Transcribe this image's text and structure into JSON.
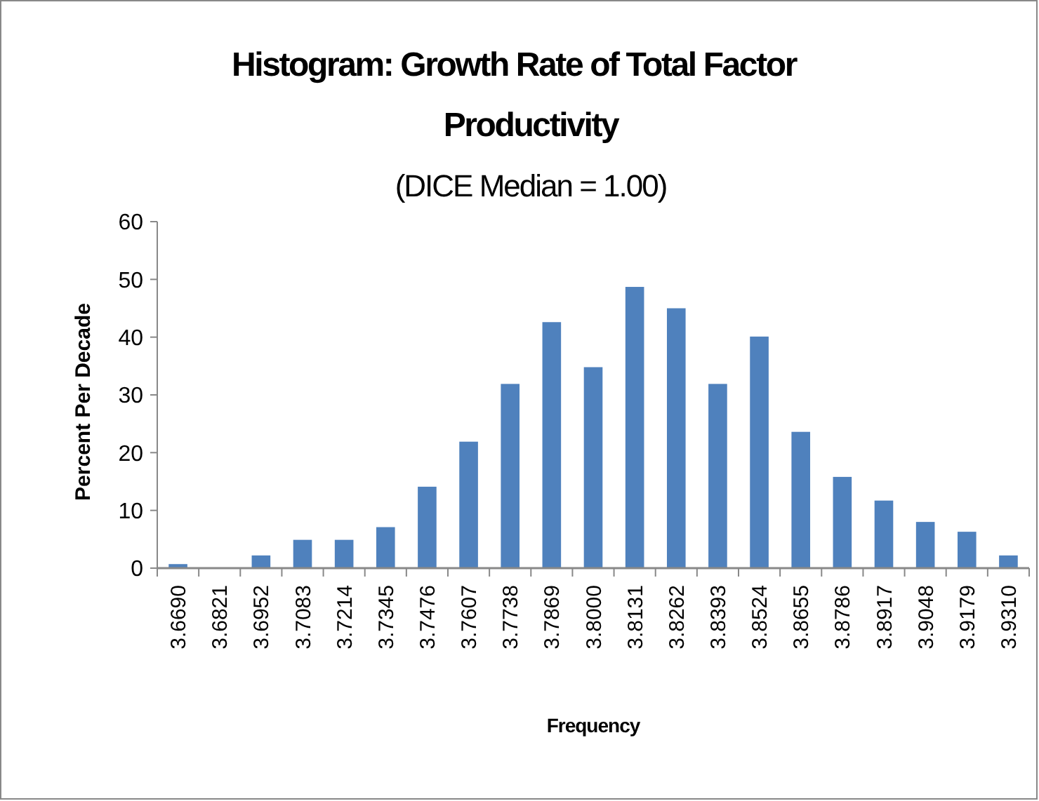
{
  "chart_data": {
    "type": "bar",
    "title": "Histogram: Growth Rate of Total Factor Productivity",
    "subtitle": "(DICE Median = 1.00)",
    "xlabel": "Frequency",
    "ylabel": "Percent Per Decade",
    "categories": [
      "3.6690",
      "3.6821",
      "3.6952",
      "3.7083",
      "3.7214",
      "3.7345",
      "3.7476",
      "3.7607",
      "3.7738",
      "3.7869",
      "3.8000",
      "3.8131",
      "3.8262",
      "3.8393",
      "3.8524",
      "3.8655",
      "3.8786",
      "3.8917",
      "3.9048",
      "3.9179",
      "3.9310"
    ],
    "values": [
      0.7,
      0,
      2.2,
      4.9,
      4.9,
      7.1,
      14.1,
      21.9,
      31.9,
      42.6,
      34.8,
      48.7,
      45,
      31.9,
      40.1,
      23.6,
      15.8,
      11.7,
      8,
      6.3,
      2.2
    ],
    "color": "#4f81bd",
    "ylim": [
      0,
      60
    ],
    "yticks": [
      0,
      10,
      20,
      30,
      40,
      50,
      60
    ],
    "grid": false
  }
}
